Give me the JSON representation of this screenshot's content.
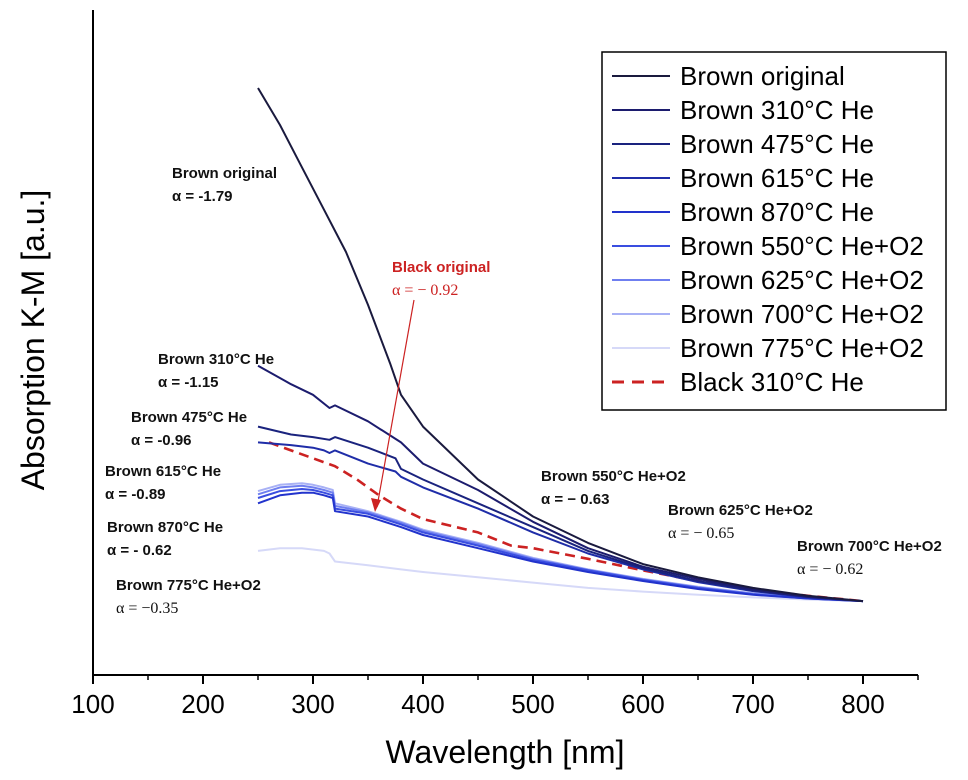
{
  "chart_data": {
    "type": "line",
    "xlabel": "Wavelength [nm]",
    "ylabel": "Absorption K-M [a.u.]",
    "xlim": [
      100,
      850
    ],
    "x_ticks": [
      100,
      200,
      300,
      400,
      500,
      600,
      700,
      800
    ],
    "y_ticks": [],
    "grid": false,
    "legend_position": "top-right",
    "series": [
      {
        "name": "Brown original",
        "color": "#1a1a3e",
        "dash": false,
        "x": [
          250,
          270,
          290,
          310,
          330,
          350,
          370,
          380,
          400,
          450,
          500,
          550,
          600,
          650,
          700,
          750,
          800
        ],
        "y": [
          1.0,
          0.93,
          0.85,
          0.77,
          0.69,
          0.59,
          0.48,
          0.42,
          0.36,
          0.26,
          0.19,
          0.14,
          0.1,
          0.075,
          0.055,
          0.04,
          0.03
        ]
      },
      {
        "name": "Brown 310°C He",
        "color": "#1c1c6e",
        "dash": false,
        "x": [
          250,
          280,
          300,
          315,
          320,
          350,
          380,
          400,
          450,
          500,
          550,
          600,
          650,
          700,
          750,
          800
        ],
        "y": [
          0.475,
          0.44,
          0.42,
          0.395,
          0.4,
          0.37,
          0.33,
          0.29,
          0.24,
          0.18,
          0.13,
          0.095,
          0.072,
          0.052,
          0.038,
          0.03
        ]
      },
      {
        "name": "Brown 475°C He",
        "color": "#1a237e",
        "dash": false,
        "x": [
          250,
          280,
          300,
          315,
          320,
          350,
          375,
          380,
          400,
          450,
          500,
          550,
          600,
          650,
          700,
          750,
          800
        ],
        "y": [
          0.36,
          0.345,
          0.34,
          0.335,
          0.34,
          0.32,
          0.3,
          0.28,
          0.26,
          0.215,
          0.17,
          0.125,
          0.092,
          0.068,
          0.05,
          0.038,
          0.03
        ]
      },
      {
        "name": "Brown 615°C He",
        "color": "#1f2da8",
        "dash": false,
        "x": [
          250,
          280,
          300,
          310,
          315,
          320,
          350,
          375,
          380,
          400,
          450,
          500,
          550,
          600,
          650,
          700,
          750,
          800
        ],
        "y": [
          0.33,
          0.325,
          0.32,
          0.315,
          0.31,
          0.315,
          0.29,
          0.275,
          0.265,
          0.245,
          0.205,
          0.16,
          0.12,
          0.09,
          0.066,
          0.049,
          0.037,
          0.03
        ]
      },
      {
        "name": "Brown 870°C He",
        "color": "#2233cc",
        "dash": false,
        "x": [
          250,
          270,
          290,
          300,
          310,
          318,
          320,
          350,
          380,
          400,
          450,
          500,
          550,
          600,
          650,
          700,
          750,
          800
        ],
        "y": [
          0.215,
          0.23,
          0.235,
          0.235,
          0.23,
          0.225,
          0.2,
          0.19,
          0.17,
          0.155,
          0.13,
          0.105,
          0.085,
          0.068,
          0.053,
          0.042,
          0.035,
          0.03
        ]
      },
      {
        "name": "Brown 550°C He+O2",
        "color": "#3a4ee0",
        "dash": false,
        "x": [
          250,
          270,
          290,
          300,
          310,
          318,
          320,
          350,
          380,
          400,
          450,
          500,
          550,
          600,
          650,
          700,
          750,
          800
        ],
        "y": [
          0.225,
          0.238,
          0.242,
          0.24,
          0.235,
          0.23,
          0.205,
          0.195,
          0.175,
          0.16,
          0.135,
          0.108,
          0.088,
          0.07,
          0.055,
          0.043,
          0.035,
          0.03
        ]
      },
      {
        "name": "Brown 625°C He+O2",
        "color": "#6f7ff0",
        "dash": false,
        "x": [
          250,
          270,
          290,
          300,
          310,
          318,
          320,
          350,
          380,
          400,
          450,
          500,
          550,
          600,
          650,
          700,
          750,
          800
        ],
        "y": [
          0.232,
          0.245,
          0.248,
          0.245,
          0.24,
          0.235,
          0.21,
          0.198,
          0.178,
          0.163,
          0.138,
          0.11,
          0.089,
          0.071,
          0.056,
          0.044,
          0.036,
          0.03
        ]
      },
      {
        "name": "Brown 700°C He+O2",
        "color": "#a8b1f5",
        "dash": false,
        "x": [
          250,
          270,
          290,
          300,
          310,
          318,
          320,
          350,
          380,
          400,
          450,
          500,
          550,
          600,
          650,
          700,
          750,
          800
        ],
        "y": [
          0.238,
          0.25,
          0.253,
          0.25,
          0.245,
          0.24,
          0.215,
          0.2,
          0.18,
          0.165,
          0.14,
          0.112,
          0.09,
          0.072,
          0.057,
          0.045,
          0.036,
          0.03
        ]
      },
      {
        "name": "Brown 775°C He+O2",
        "color": "#d6d9f8",
        "dash": false,
        "x": [
          250,
          270,
          290,
          310,
          315,
          320,
          350,
          380,
          400,
          450,
          500,
          550,
          600,
          650,
          700,
          750,
          800
        ],
        "y": [
          0.125,
          0.13,
          0.13,
          0.125,
          0.12,
          0.105,
          0.098,
          0.09,
          0.085,
          0.075,
          0.065,
          0.055,
          0.048,
          0.042,
          0.037,
          0.033,
          0.03
        ]
      },
      {
        "name": "Black 310°C He",
        "color": "#cc2222",
        "dash": true,
        "x": [
          260,
          280,
          300,
          320,
          340,
          360,
          380,
          400,
          450,
          480,
          500,
          550,
          600,
          650,
          700,
          750,
          800
        ],
        "y": [
          0.33,
          0.315,
          0.3,
          0.285,
          0.26,
          0.23,
          0.205,
          0.185,
          0.16,
          0.135,
          0.13,
          0.11,
          0.088,
          0.068,
          0.052,
          0.04,
          0.03
        ]
      }
    ],
    "annotations": [
      {
        "name": "Brown original",
        "alpha": "α = -1.79",
        "color": "#111111"
      },
      {
        "name": "Brown 310°C He",
        "alpha": "α = -1.15",
        "color": "#111111"
      },
      {
        "name": "Brown 475°C He",
        "alpha": "α = -0.96",
        "color": "#111111"
      },
      {
        "name": "Brown 615°C He",
        "alpha": "α = -0.89",
        "color": "#111111"
      },
      {
        "name": "Brown 870°C He",
        "alpha": "α =  - 0.62",
        "color": "#111111"
      },
      {
        "name": "Brown 775°C He+O2",
        "alpha": "α = −0.35",
        "color": "#111111"
      },
      {
        "name": "Brown 550°C He+O2",
        "alpha": "α = − 0.63",
        "color": "#111111"
      },
      {
        "name": "Brown 625°C He+O2",
        "alpha": "α = − 0.65",
        "color": "#111111"
      },
      {
        "name": "Brown 700°C He+O2",
        "alpha": "α = − 0.62",
        "color": "#111111"
      },
      {
        "name": "Black original",
        "alpha": "α = − 0.92",
        "color": "#cc2222"
      }
    ]
  }
}
